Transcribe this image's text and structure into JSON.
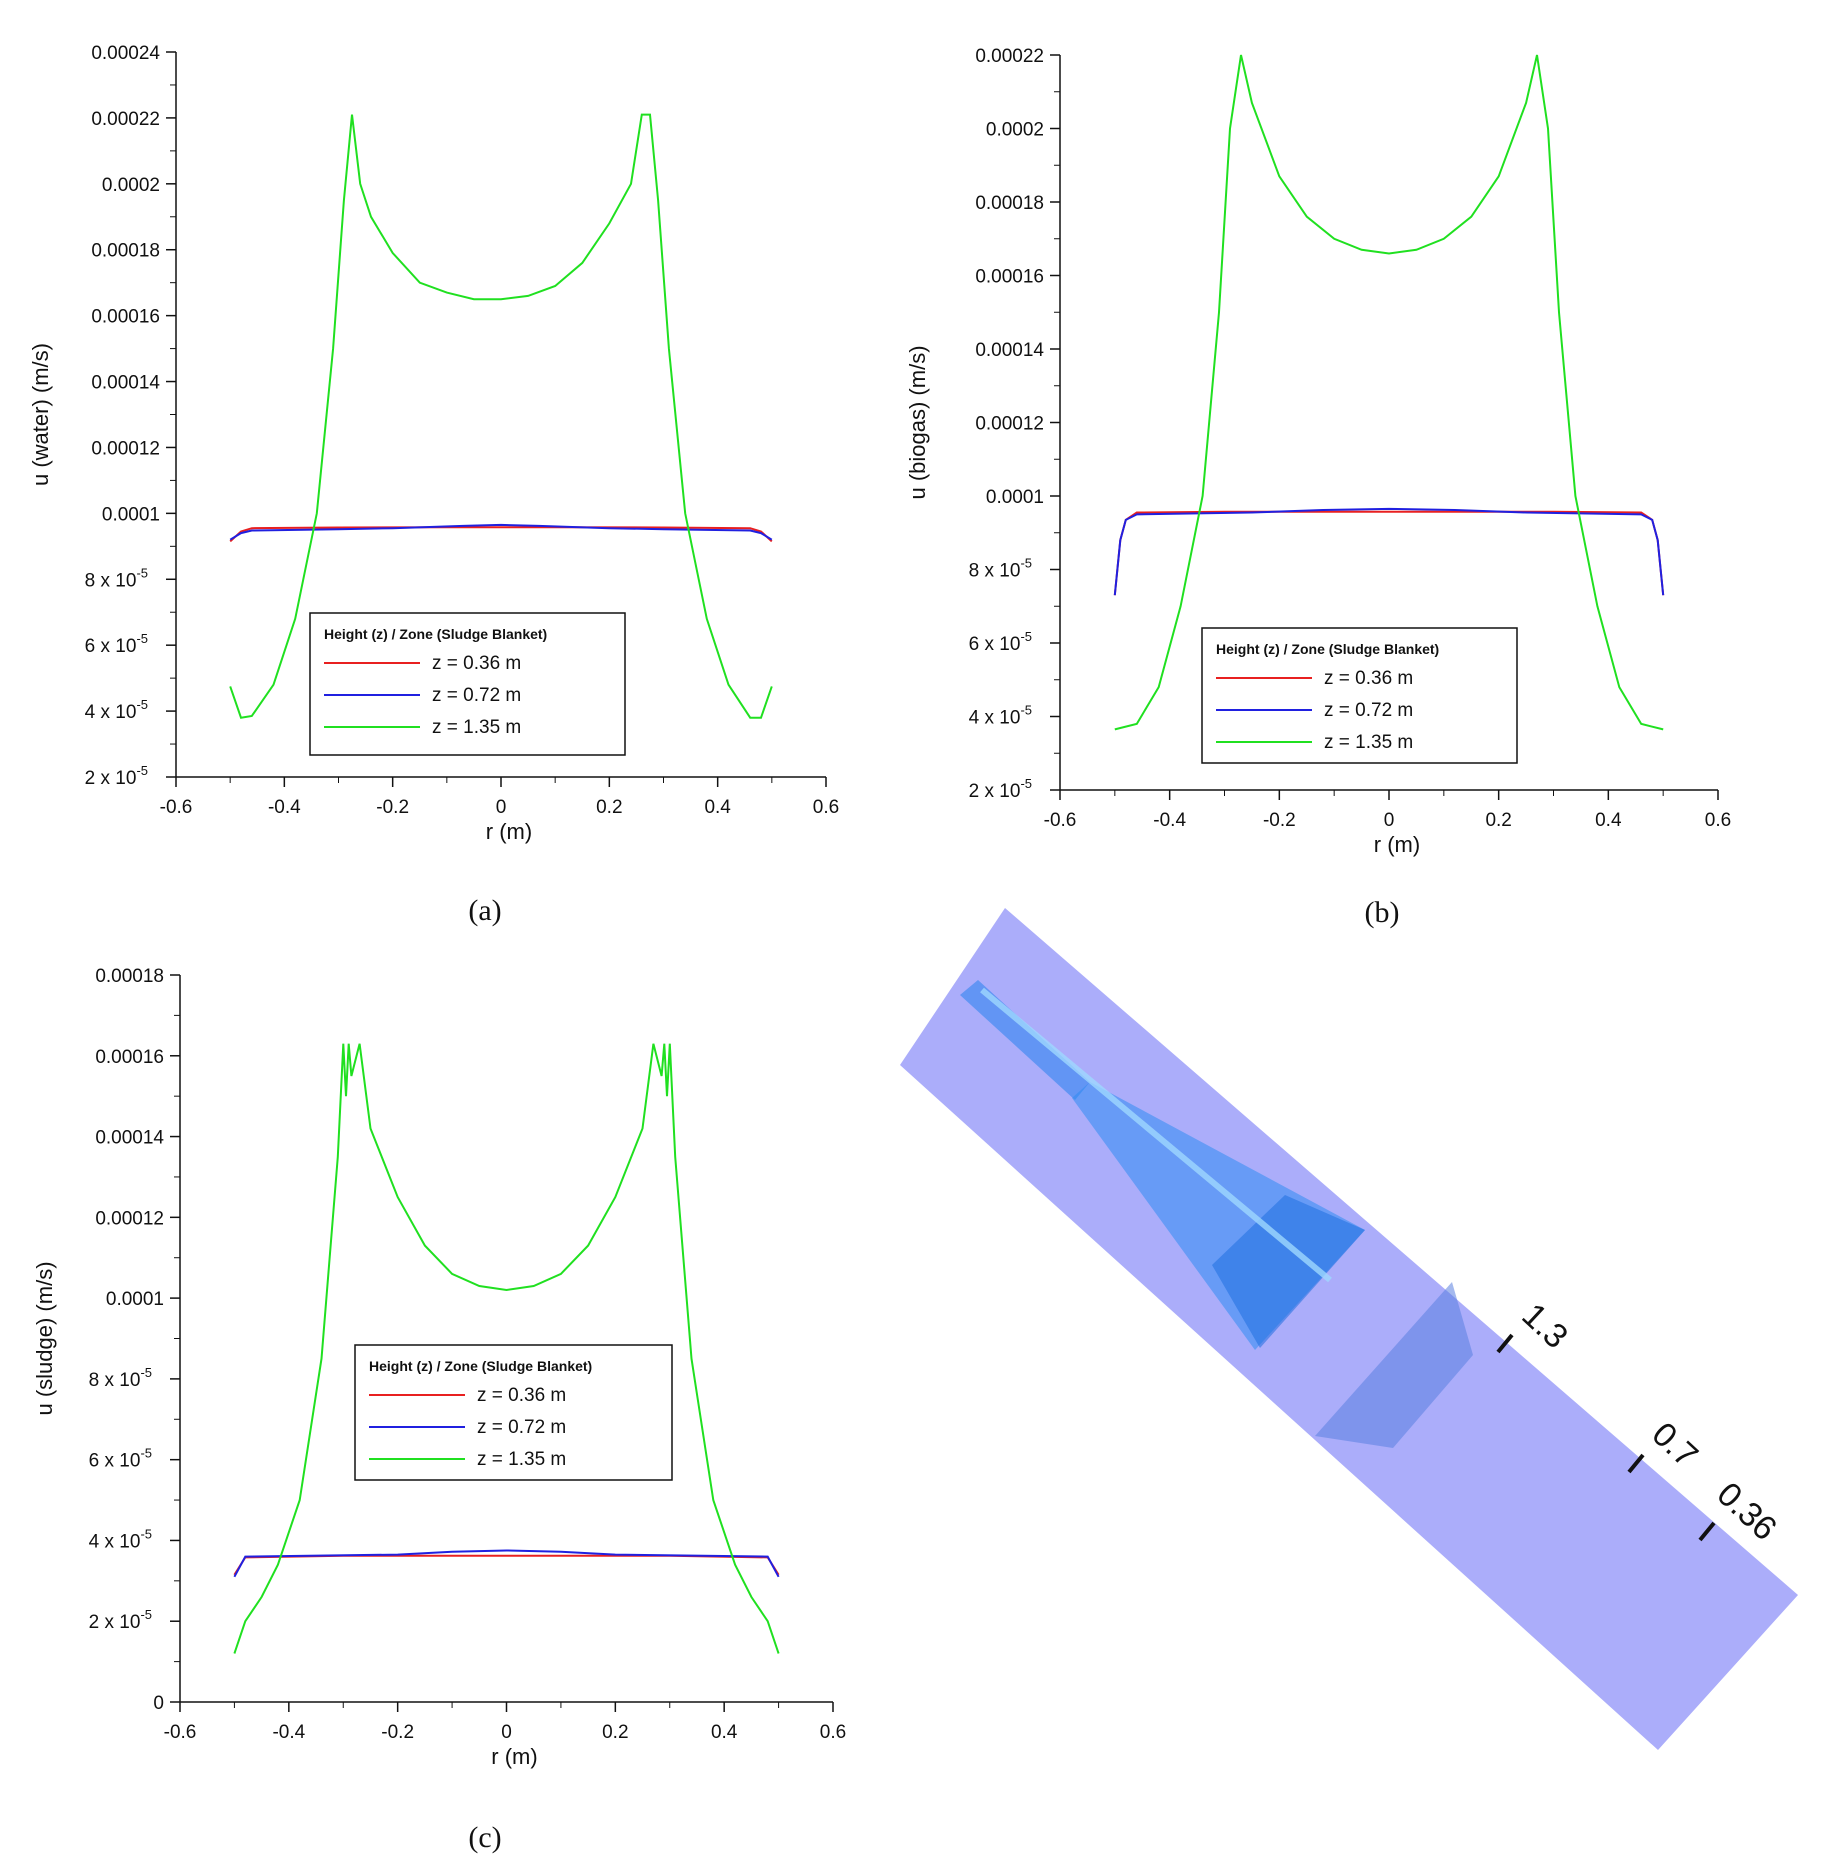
{
  "colors": {
    "z036": "#e82020",
    "z072": "#2020e0",
    "z135": "#20e020",
    "tube": "#abadfa",
    "cone": "#2f8cf2"
  },
  "chart_data": [
    {
      "id": "a",
      "type": "line",
      "caption": "(a)",
      "xlabel": "r (m)",
      "ylabel": "u (water) (m/s)",
      "xlim": [
        -0.6,
        0.6
      ],
      "ylim": [
        2e-05,
        0.00024
      ],
      "xticks": [
        "-0.6",
        "-0.4",
        "-0.2",
        "0",
        "0.2",
        "0.4",
        "0.6"
      ],
      "yticks": [
        {
          "v": 2e-05,
          "m": "2 x 10",
          "e": "-5"
        },
        {
          "v": 4e-05,
          "m": "4 x 10",
          "e": "-5"
        },
        {
          "v": 6e-05,
          "m": "6 x 10",
          "e": "-5"
        },
        {
          "v": 8e-05,
          "m": "8 x 10",
          "e": "-5"
        },
        {
          "v": 0.0001,
          "m": "0.0001",
          "e": ""
        },
        {
          "v": 0.00012,
          "m": "0.00012",
          "e": ""
        },
        {
          "v": 0.00014,
          "m": "0.00014",
          "e": ""
        },
        {
          "v": 0.00016,
          "m": "0.00016",
          "e": ""
        },
        {
          "v": 0.00018,
          "m": "0.00018",
          "e": ""
        },
        {
          "v": 0.0002,
          "m": "0.0002",
          "e": ""
        },
        {
          "v": 0.00022,
          "m": "0.00022",
          "e": ""
        },
        {
          "v": 0.00024,
          "m": "0.00024",
          "e": ""
        }
      ],
      "legend": {
        "title": "Height (z) / Zone (Sludge Blanket)",
        "position": "lower-center"
      },
      "series": [
        {
          "name": "z = 0.36 m",
          "color": "#e82020",
          "x": [
            -0.5,
            -0.48,
            -0.46,
            -0.3,
            -0.1,
            0,
            0.1,
            0.3,
            0.46,
            0.48,
            0.5
          ],
          "y": [
            9.15e-05,
            9.45e-05,
            9.55e-05,
            9.57e-05,
            9.58e-05,
            9.58e-05,
            9.58e-05,
            9.57e-05,
            9.55e-05,
            9.45e-05,
            9.15e-05
          ]
        },
        {
          "name": "z = 0.72 m",
          "color": "#2020e0",
          "x": [
            -0.5,
            -0.48,
            -0.46,
            -0.3,
            -0.2,
            -0.07,
            0,
            0.07,
            0.2,
            0.3,
            0.46,
            0.48,
            0.5
          ],
          "y": [
            9.2e-05,
            9.4e-05,
            9.48e-05,
            9.52e-05,
            9.55e-05,
            9.62e-05,
            9.65e-05,
            9.62e-05,
            9.55e-05,
            9.52e-05,
            9.48e-05,
            9.4e-05,
            9.2e-05
          ]
        },
        {
          "name": "z = 1.35 m",
          "color": "#20e020",
          "x": [
            -0.5,
            -0.48,
            -0.46,
            -0.42,
            -0.38,
            -0.34,
            -0.31,
            -0.29,
            -0.275,
            -0.26,
            -0.24,
            -0.2,
            -0.15,
            -0.1,
            -0.05,
            0,
            0.05,
            0.1,
            0.15,
            0.2,
            0.24,
            0.26,
            0.275,
            0.29,
            0.31,
            0.34,
            0.38,
            0.42,
            0.46,
            0.48,
            0.5
          ],
          "y": [
            4.75e-05,
            3.8e-05,
            3.85e-05,
            4.8e-05,
            6.8e-05,
            0.0001,
            0.00015,
            0.000195,
            0.000221,
            0.0002,
            0.00019,
            0.000179,
            0.00017,
            0.000167,
            0.000165,
            0.000165,
            0.000166,
            0.000169,
            0.000176,
            0.000188,
            0.0002,
            0.000221,
            0.000221,
            0.000195,
            0.00015,
            0.0001,
            6.8e-05,
            4.8e-05,
            3.8e-05,
            3.8e-05,
            4.75e-05
          ]
        }
      ]
    },
    {
      "id": "b",
      "type": "line",
      "caption": "(b)",
      "xlabel": "r (m)",
      "ylabel": "u (biogas) (m/s)",
      "xlim": [
        -0.6,
        0.6
      ],
      "ylim": [
        2e-05,
        0.00022
      ],
      "xticks": [
        "-0.6",
        "-0.4",
        "-0.2",
        "0",
        "0.2",
        "0.4",
        "0.6"
      ],
      "yticks": [
        {
          "v": 2e-05,
          "m": "2 x 10",
          "e": "-5"
        },
        {
          "v": 4e-05,
          "m": "4 x 10",
          "e": "-5"
        },
        {
          "v": 6e-05,
          "m": "6 x 10",
          "e": "-5"
        },
        {
          "v": 8e-05,
          "m": "8 x 10",
          "e": "-5"
        },
        {
          "v": 0.0001,
          "m": "0.0001",
          "e": ""
        },
        {
          "v": 0.00012,
          "m": "0.00012",
          "e": ""
        },
        {
          "v": 0.00014,
          "m": "0.00014",
          "e": ""
        },
        {
          "v": 0.00016,
          "m": "0.00016",
          "e": ""
        },
        {
          "v": 0.00018,
          "m": "0.00018",
          "e": ""
        },
        {
          "v": 0.0002,
          "m": "0.0002",
          "e": ""
        },
        {
          "v": 0.00022,
          "m": "0.00022",
          "e": ""
        }
      ],
      "legend": {
        "title": "Height (z) / Zone (Sludge Blanket)",
        "position": "lower-center"
      },
      "series": [
        {
          "name": "z = 0.36 m",
          "color": "#e82020",
          "x": [
            -0.5,
            -0.49,
            -0.48,
            -0.46,
            -0.3,
            0,
            0.3,
            0.46,
            0.48,
            0.49,
            0.5
          ],
          "y": [
            7.3e-05,
            8.8e-05,
            9.35e-05,
            9.55e-05,
            9.57e-05,
            9.57e-05,
            9.57e-05,
            9.55e-05,
            9.35e-05,
            8.8e-05,
            7.3e-05
          ]
        },
        {
          "name": "z = 0.72 m",
          "color": "#2020e0",
          "x": [
            -0.5,
            -0.49,
            -0.48,
            -0.46,
            -0.25,
            -0.12,
            0,
            0.12,
            0.25,
            0.46,
            0.48,
            0.49,
            0.5
          ],
          "y": [
            7.3e-05,
            8.8e-05,
            9.35e-05,
            9.5e-05,
            9.55e-05,
            9.62e-05,
            9.65e-05,
            9.62e-05,
            9.55e-05,
            9.5e-05,
            9.35e-05,
            8.8e-05,
            7.3e-05
          ]
        },
        {
          "name": "z = 1.35 m",
          "color": "#20e020",
          "x": [
            -0.5,
            -0.46,
            -0.42,
            -0.38,
            -0.34,
            -0.31,
            -0.29,
            -0.27,
            -0.25,
            -0.2,
            -0.15,
            -0.1,
            -0.05,
            0,
            0.05,
            0.1,
            0.15,
            0.2,
            0.25,
            0.27,
            0.29,
            0.31,
            0.34,
            0.38,
            0.42,
            0.46,
            0.5
          ],
          "y": [
            3.65e-05,
            3.8e-05,
            4.8e-05,
            7e-05,
            0.0001,
            0.00015,
            0.0002,
            0.00022,
            0.000207,
            0.000187,
            0.000176,
            0.00017,
            0.000167,
            0.000166,
            0.000167,
            0.00017,
            0.000176,
            0.000187,
            0.000207,
            0.00022,
            0.0002,
            0.00015,
            0.0001,
            7e-05,
            4.8e-05,
            3.8e-05,
            3.65e-05
          ]
        }
      ]
    },
    {
      "id": "c",
      "type": "line",
      "caption": "(c)",
      "xlabel": "r (m)",
      "ylabel": "u (sludge) (m/s)",
      "xlim": [
        -0.6,
        0.6
      ],
      "ylim": [
        0,
        0.00018
      ],
      "xticks": [
        "-0.6",
        "-0.4",
        "-0.2",
        "0",
        "0.2",
        "0.4",
        "0.6"
      ],
      "yticks": [
        {
          "v": 0,
          "m": "0",
          "e": ""
        },
        {
          "v": 2e-05,
          "m": "2 x 10",
          "e": "-5"
        },
        {
          "v": 4e-05,
          "m": "4 x 10",
          "e": "-5"
        },
        {
          "v": 6e-05,
          "m": "6 x 10",
          "e": "-5"
        },
        {
          "v": 8e-05,
          "m": "8 x 10",
          "e": "-5"
        },
        {
          "v": 0.0001,
          "m": "0.0001",
          "e": ""
        },
        {
          "v": 0.00012,
          "m": "0.00012",
          "e": ""
        },
        {
          "v": 0.00014,
          "m": "0.00014",
          "e": ""
        },
        {
          "v": 0.00016,
          "m": "0.00016",
          "e": ""
        },
        {
          "v": 0.00018,
          "m": "0.00018",
          "e": ""
        }
      ],
      "legend": {
        "title": "Height (z) / Zone (Sludge Blanket)",
        "position": "center"
      },
      "series": [
        {
          "name": "z = 0.36 m",
          "color": "#e82020",
          "x": [
            -0.5,
            -0.48,
            -0.3,
            0,
            0.3,
            0.48,
            0.5
          ],
          "y": [
            3.15e-05,
            3.58e-05,
            3.62e-05,
            3.62e-05,
            3.62e-05,
            3.58e-05,
            3.15e-05
          ]
        },
        {
          "name": "z = 0.72 m",
          "color": "#2020e0",
          "x": [
            -0.5,
            -0.48,
            -0.2,
            -0.1,
            0,
            0.1,
            0.2,
            0.48,
            0.5
          ],
          "y": [
            3.1e-05,
            3.6e-05,
            3.65e-05,
            3.72e-05,
            3.75e-05,
            3.72e-05,
            3.65e-05,
            3.6e-05,
            3.1e-05
          ]
        },
        {
          "name": "z = 1.35 m",
          "color": "#20e020",
          "x": [
            -0.5,
            -0.48,
            -0.45,
            -0.42,
            -0.38,
            -0.34,
            -0.31,
            -0.3,
            -0.295,
            -0.29,
            -0.285,
            -0.27,
            -0.25,
            -0.2,
            -0.15,
            -0.1,
            -0.05,
            0,
            0.05,
            0.1,
            0.15,
            0.2,
            0.25,
            0.27,
            0.285,
            0.29,
            0.295,
            0.3,
            0.31,
            0.34,
            0.38,
            0.42,
            0.45,
            0.48,
            0.5
          ],
          "y": [
            1.2e-05,
            2e-05,
            2.6e-05,
            3.4e-05,
            5e-05,
            8.5e-05,
            0.000135,
            0.000163,
            0.00015,
            0.000163,
            0.000155,
            0.000163,
            0.000142,
            0.000125,
            0.000113,
            0.000106,
            0.000103,
            0.000102,
            0.000103,
            0.000106,
            0.000113,
            0.000125,
            0.000142,
            0.000163,
            0.000155,
            0.000163,
            0.00015,
            0.000163,
            0.000135,
            8.5e-05,
            5e-05,
            3.4e-05,
            2.6e-05,
            2e-05,
            1.2e-05
          ]
        }
      ]
    }
  ],
  "diagram": {
    "height_labels": [
      "1.3",
      "0.7",
      "0.36"
    ]
  }
}
